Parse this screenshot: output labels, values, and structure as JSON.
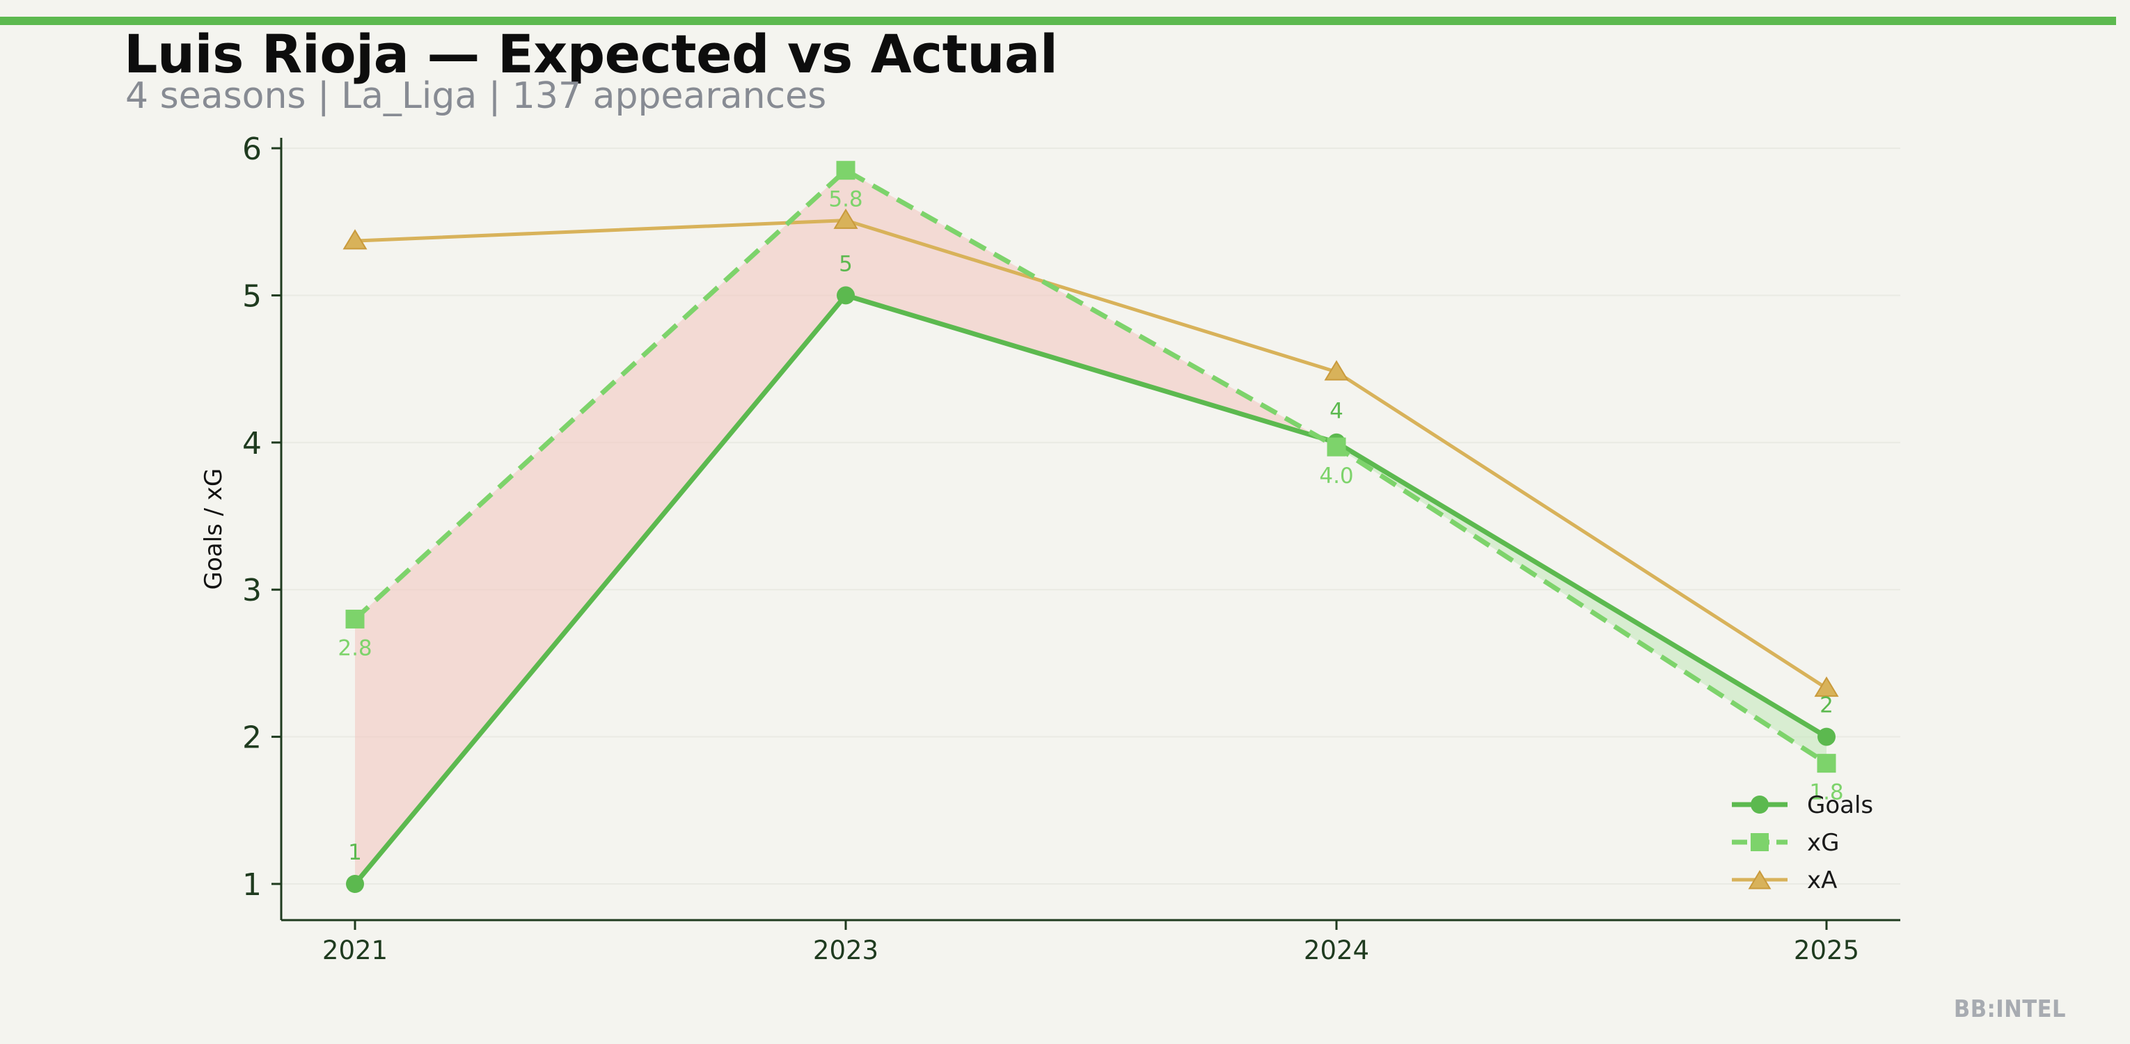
{
  "header": {
    "title": "Luis Rioja — Expected vs Actual",
    "subtitle": "4 seasons | La_Liga | 137 appearances"
  },
  "watermark": "BB:INTEL",
  "chart_data": {
    "type": "line",
    "title": "Luis Rioja — Expected vs Actual",
    "subtitle": "4 seasons | La_Liga | 137 appearances",
    "xlabel": "",
    "ylabel": "Goals / xG",
    "categories": [
      "2021",
      "2023",
      "2024",
      "2025"
    ],
    "ylim": [
      0.75,
      6.1
    ],
    "yticks": [
      1,
      2,
      3,
      4,
      5,
      6
    ],
    "grid": "horizontal, faint",
    "legend_position": "bottom-right",
    "series": [
      {
        "name": "Goals",
        "values": [
          1,
          5,
          4,
          2
        ],
        "labels": [
          "1",
          "5",
          "4",
          "2"
        ],
        "color": "#5cb94f",
        "marker": "circle",
        "style": "solid"
      },
      {
        "name": "xG",
        "values": [
          2.8,
          5.85,
          3.97,
          1.82
        ],
        "labels": [
          "2.8",
          "5.8",
          "4.0",
          "1.8"
        ],
        "color": "#7dd36b",
        "marker": "square",
        "style": "dashed"
      },
      {
        "name": "xA",
        "values": [
          5.37,
          5.51,
          4.48,
          2.33
        ],
        "color": "#d8b25a",
        "marker": "triangle",
        "style": "solid"
      }
    ],
    "fill_between": {
      "between": [
        "Goals",
        "xG"
      ],
      "underperform_color": "#f2c9c3",
      "overperform_color": "#c6e8bf"
    }
  }
}
